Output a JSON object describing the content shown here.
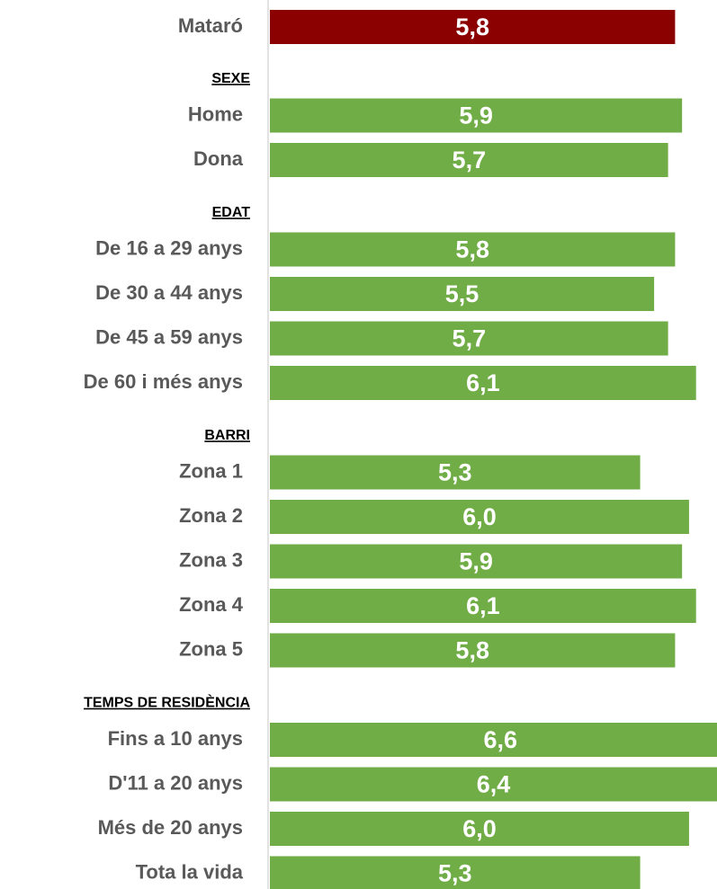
{
  "chart_data": {
    "type": "bar",
    "orientation": "horizontal",
    "xlim": [
      0,
      6.4
    ],
    "total": {
      "category": "Mataró",
      "value": 5.8,
      "value_label": "5,8",
      "color": "#8b0000"
    },
    "color": "#70ad47",
    "groups": [
      {
        "name": "SEXE",
        "categories": [
          "Home",
          "Dona"
        ],
        "values": [
          5.9,
          5.7
        ],
        "value_labels": [
          "5,9",
          "5,7"
        ]
      },
      {
        "name": "EDAT",
        "categories": [
          "De 16 a 29 anys",
          "De 30 a 44 anys",
          "De 45 a 59 anys",
          "De 60 i més anys"
        ],
        "values": [
          5.8,
          5.5,
          5.7,
          6.1
        ],
        "value_labels": [
          "5,8",
          "5,5",
          "5,7",
          "6,1"
        ]
      },
      {
        "name": "BARRI",
        "categories": [
          "Zona 1",
          "Zona 2",
          "Zona 3",
          "Zona 4",
          "Zona  5"
        ],
        "values": [
          5.3,
          6.0,
          5.9,
          6.1,
          5.8
        ],
        "value_labels": [
          "5,3",
          "6,0",
          "5,9",
          "6,1",
          "5,8"
        ]
      },
      {
        "name": "TEMPS DE RESIDÈNCIA",
        "categories": [
          "Fins a 10 anys",
          "D'11 a 20 anys",
          "Més de 20 anys",
          "Tota la vida"
        ],
        "values": [
          6.6,
          6.4,
          6.0,
          5.3
        ],
        "value_labels": [
          "6,6",
          "6,4",
          "6,0",
          "5,3"
        ]
      }
    ]
  }
}
